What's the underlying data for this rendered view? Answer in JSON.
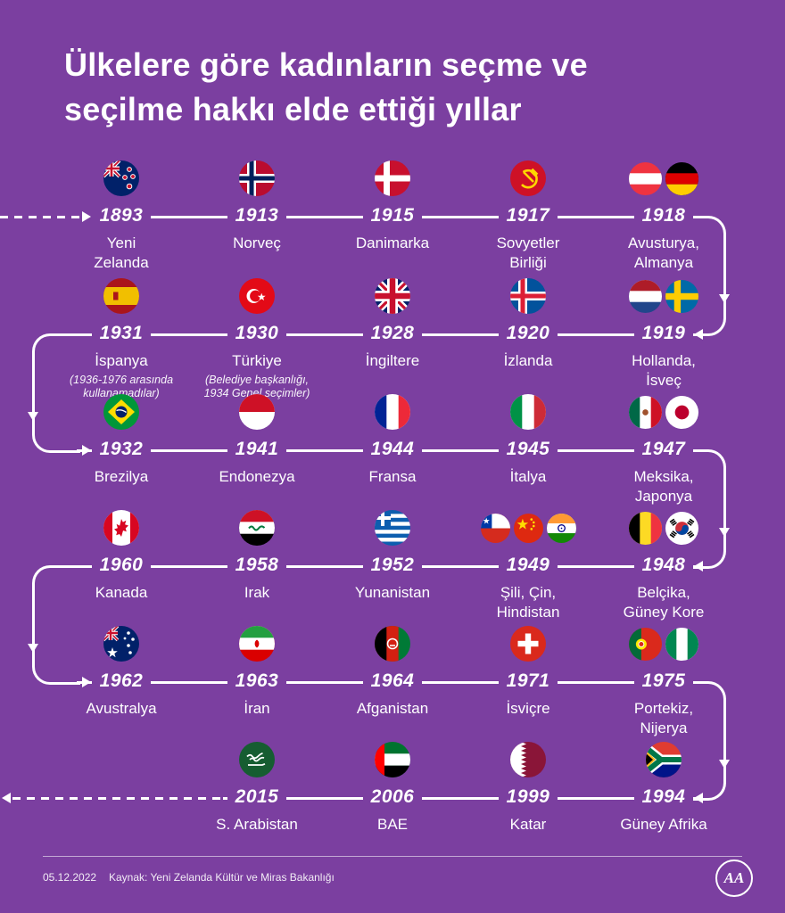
{
  "colors": {
    "background": "#7B3FA0",
    "line": "#FFFFFF"
  },
  "title": {
    "line1": "Ülkelere göre kadınların seçme ve",
    "line2": "seçilme hakkı elde ettiği yıllar"
  },
  "timeline": {
    "rows": [
      {
        "items": [
          {
            "year": "1893",
            "name": "Yeni\nZelanda",
            "flags": [
              "new-zealand"
            ]
          },
          {
            "year": "1913",
            "name": "Norveç",
            "flags": [
              "norway"
            ]
          },
          {
            "year": "1915",
            "name": "Danimarka",
            "flags": [
              "denmark"
            ]
          },
          {
            "year": "1917",
            "name": "Sovyetler\nBirliği",
            "flags": [
              "soviet-union"
            ]
          },
          {
            "year": "1918",
            "name": "Avusturya,\nAlmanya",
            "flags": [
              "austria",
              "germany"
            ]
          }
        ]
      },
      {
        "items": [
          {
            "year": "1931",
            "name": "İspanya",
            "note": "(1936-1976 arasında\nkullanamadılar)",
            "flags": [
              "spain"
            ]
          },
          {
            "year": "1930",
            "name": "Türkiye",
            "note": "(Belediye başkanlığı,\n1934 Genel seçimler)",
            "flags": [
              "turkey"
            ]
          },
          {
            "year": "1928",
            "name": "İngiltere",
            "flags": [
              "united-kingdom"
            ]
          },
          {
            "year": "1920",
            "name": "İzlanda",
            "flags": [
              "iceland"
            ]
          },
          {
            "year": "1919",
            "name": "Hollanda,\nİsveç",
            "flags": [
              "netherlands",
              "sweden"
            ]
          }
        ]
      },
      {
        "items": [
          {
            "year": "1932",
            "name": "Brezilya",
            "flags": [
              "brazil"
            ]
          },
          {
            "year": "1941",
            "name": "Endonezya",
            "flags": [
              "indonesia"
            ]
          },
          {
            "year": "1944",
            "name": "Fransa",
            "flags": [
              "france"
            ]
          },
          {
            "year": "1945",
            "name": "İtalya",
            "flags": [
              "italy"
            ]
          },
          {
            "year": "1947",
            "name": "Meksika,\nJaponya",
            "flags": [
              "mexico",
              "japan"
            ]
          }
        ]
      },
      {
        "items": [
          {
            "year": "1960",
            "name": "Kanada",
            "flags": [
              "canada"
            ]
          },
          {
            "year": "1958",
            "name": "Irak",
            "flags": [
              "iraq"
            ]
          },
          {
            "year": "1952",
            "name": "Yunanistan",
            "flags": [
              "greece"
            ]
          },
          {
            "year": "1949",
            "name": "Şili, Çin,\nHindistan",
            "flags": [
              "chile",
              "china",
              "india"
            ]
          },
          {
            "year": "1948",
            "name": "Belçika,\nGüney Kore",
            "flags": [
              "belgium",
              "south-korea"
            ]
          }
        ]
      },
      {
        "items": [
          {
            "year": "1962",
            "name": "Avustralya",
            "flags": [
              "australia"
            ]
          },
          {
            "year": "1963",
            "name": "İran",
            "flags": [
              "iran"
            ]
          },
          {
            "year": "1964",
            "name": "Afganistan",
            "flags": [
              "afghanistan"
            ]
          },
          {
            "year": "1971",
            "name": "İsviçre",
            "flags": [
              "switzerland"
            ]
          },
          {
            "year": "1975",
            "name": "Portekiz,\nNijerya",
            "flags": [
              "portugal",
              "nigeria"
            ]
          }
        ]
      },
      {
        "items": [
          null,
          {
            "year": "2015",
            "name": "S. Arabistan",
            "flags": [
              "saudi-arabia"
            ]
          },
          {
            "year": "2006",
            "name": "BAE",
            "flags": [
              "uae"
            ]
          },
          {
            "year": "1999",
            "name": "Katar",
            "flags": [
              "qatar"
            ]
          },
          {
            "year": "1994",
            "name": "Güney Afrika",
            "flags": [
              "south-africa"
            ]
          }
        ]
      }
    ]
  },
  "footer": {
    "date": "05.12.2022",
    "source": "Kaynak: Yeni Zelanda Kültür ve Miras Bakanlığı",
    "logo_text": "AA"
  }
}
